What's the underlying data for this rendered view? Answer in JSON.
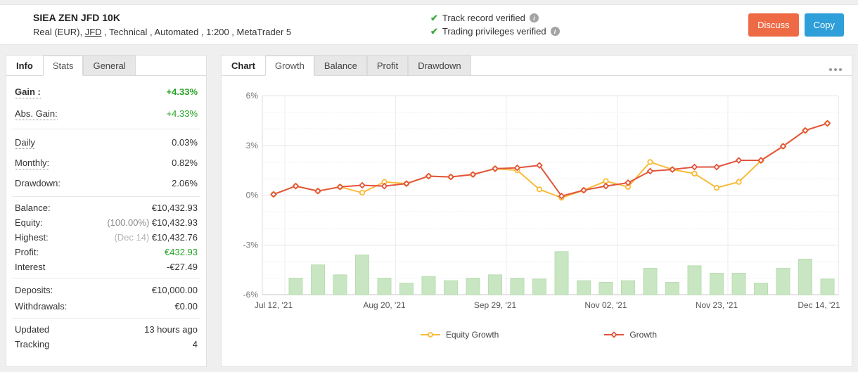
{
  "header": {
    "title": "SIEA ZEN JFD 10K",
    "subtitle_prefix": "Real (EUR), ",
    "subtitle_link": "JFD",
    "subtitle_rest": " , Technical , Automated , 1:200 , MetaTrader 5",
    "badges": [
      {
        "label": "Track record verified"
      },
      {
        "label": "Trading privileges verified"
      }
    ],
    "buttons": {
      "discuss": "Discuss",
      "copy": "Copy"
    },
    "colors": {
      "discuss_bg": "#ee6a45",
      "copy_bg": "#2f9fd9",
      "check_green": "#3cab3c",
      "gain_green": "#28a228"
    }
  },
  "stats_panel": {
    "tabs": [
      "Info",
      "Stats",
      "General"
    ],
    "rows": [
      {
        "label": "Gain :",
        "prefix": "",
        "value": "+4.33%"
      },
      {
        "label": "Abs. Gain:",
        "prefix": "",
        "value": "+4.33%"
      },
      {
        "label": "Daily",
        "prefix": "",
        "value": "0.03%"
      },
      {
        "label": "Monthly:",
        "prefix": "",
        "value": "0.82%"
      },
      {
        "label": "Drawdown:",
        "prefix": "",
        "value": "2.06%"
      },
      {
        "label": "Balance:",
        "prefix": "",
        "value": "€10,432.93"
      },
      {
        "label": "Equity:",
        "prefix": "(100.00%)",
        "value": " €10,432.93"
      },
      {
        "label": "Highest:",
        "prefix": "(Dec 14)",
        "value": " €10,432.76"
      },
      {
        "label": "Profit:",
        "prefix": "",
        "value": "€432.93"
      },
      {
        "label": "Interest",
        "prefix": "",
        "value": "-€27.49"
      },
      {
        "label": "Deposits:",
        "prefix": "",
        "value": "€10,000.00"
      },
      {
        "label": "Withdrawals:",
        "prefix": "",
        "value": "€0.00"
      },
      {
        "label": "Updated",
        "prefix": "",
        "value": "13 hours ago"
      },
      {
        "label": "Tracking",
        "prefix": "",
        "value": "4"
      }
    ]
  },
  "chart_panel": {
    "title_tab": "Chart",
    "tabs": [
      "Growth",
      "Balance",
      "Profit",
      "Drawdown"
    ],
    "active_tab": "Growth"
  },
  "chart_data": {
    "type": "line",
    "title": "Growth",
    "x_count": 26,
    "x_tick_indices": [
      0,
      5,
      10,
      15,
      20,
      25
    ],
    "x_tick_labels": [
      "Jul 12, '21",
      "Aug 20, '21",
      "Sep 29, '21",
      "Nov 02, '21",
      "Nov 23, '21",
      "Dec 14, '21"
    ],
    "ylim": [
      -6,
      6
    ],
    "y_ticks": [
      6,
      3,
      0,
      -3,
      -6
    ],
    "y_tick_labels": [
      "6%",
      "3%",
      "0%",
      "-3%",
      "-6%"
    ],
    "y_minor_step": 1,
    "grid": true,
    "legend_position": "bottom",
    "series": [
      {
        "name": "Equity Growth",
        "type": "line",
        "marker": "circle",
        "color": "#f9bb38",
        "values": [
          0.05,
          0.55,
          0.25,
          0.5,
          0.15,
          0.8,
          0.7,
          1.15,
          1.1,
          1.25,
          1.6,
          1.5,
          0.35,
          -0.15,
          0.3,
          0.85,
          0.5,
          2.0,
          1.55,
          1.3,
          0.45,
          0.8,
          2.08,
          2.95,
          3.9,
          4.33
        ]
      },
      {
        "name": "Growth",
        "type": "line",
        "marker": "diamond",
        "color": "#e2553d",
        "values": [
          0.05,
          0.55,
          0.25,
          0.5,
          0.6,
          0.55,
          0.7,
          1.15,
          1.1,
          1.25,
          1.6,
          1.65,
          1.8,
          -0.05,
          0.3,
          0.55,
          0.75,
          1.45,
          1.55,
          1.7,
          1.7,
          2.1,
          2.1,
          2.95,
          3.9,
          4.33
        ]
      },
      {
        "name": "volume-bars",
        "type": "bar",
        "color": "#c9e6c2",
        "border_color": "#b9ddb3",
        "baseline": -6,
        "values": [
          0,
          1.0,
          1.8,
          1.2,
          2.4,
          1.0,
          0.7,
          1.1,
          0.85,
          1.0,
          1.2,
          1.0,
          0.95,
          2.6,
          0.85,
          0.75,
          0.85,
          1.6,
          0.75,
          1.75,
          1.3,
          1.3,
          0.7,
          1.6,
          2.15,
          0.95
        ]
      }
    ]
  }
}
